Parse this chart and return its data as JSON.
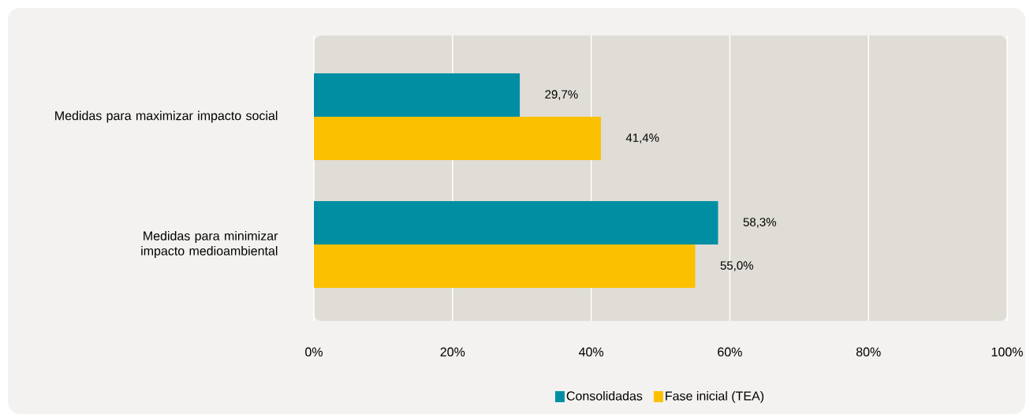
{
  "chart_data": {
    "type": "bar",
    "orientation": "horizontal",
    "categories": [
      "Medidas para maximizar impacto social",
      "Medidas para minimizar impacto medioambiental"
    ],
    "series": [
      {
        "name": "Consolidadas",
        "color": "#008fa2",
        "values": [
          29.7,
          58.3
        ],
        "value_labels": [
          "29,7%",
          "58,3%"
        ]
      },
      {
        "name": "Fase inicial (TEA)",
        "color": "#fbc100",
        "values": [
          41.4,
          55.0
        ],
        "value_labels": [
          "41,4%",
          "55,0%"
        ]
      }
    ],
    "xlim": [
      0,
      100
    ],
    "xticks": [
      {
        "value": 0,
        "label": "0%"
      },
      {
        "value": 20,
        "label": "20%"
      },
      {
        "value": 40,
        "label": "40%"
      },
      {
        "value": 60,
        "label": "60%"
      },
      {
        "value": 80,
        "label": "80%"
      },
      {
        "value": 100,
        "label": "100%"
      }
    ],
    "grid": "x",
    "legend": "bottom"
  }
}
